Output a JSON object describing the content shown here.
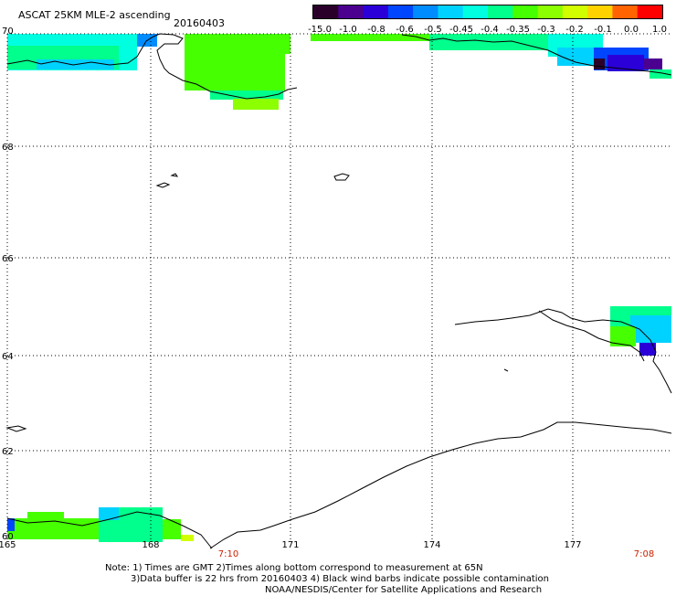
{
  "header": {
    "title": "ASCAT 25KM MLE-2 ascending",
    "date": "20160403"
  },
  "colorbar": {
    "labels": [
      "-15.0",
      "-1.0",
      "-0.8",
      "-0.6",
      "-0.5",
      "-0.45",
      "-0.4",
      "-0.35",
      "-0.3",
      "-0.2",
      "-0.1",
      "0.0",
      "1.0"
    ],
    "colors": [
      "#2a002a",
      "#4b0090",
      "#2b00d8",
      "#0046ff",
      "#008cff",
      "#00d2ff",
      "#00ffe0",
      "#00ff8c",
      "#46ff00",
      "#8cff00",
      "#d2ff00",
      "#ffd200",
      "#ff6400",
      "#ff0000"
    ]
  },
  "axes": {
    "lat_labels": [
      "70",
      "68",
      "66",
      "64",
      "62",
      "60"
    ],
    "lon_labels": [
      "165",
      "168",
      "171",
      "174",
      "177"
    ],
    "time_labels": [
      "7:10",
      "7:08"
    ]
  },
  "note": {
    "line1": "Note: 1) Times are GMT 2)Times along bottom correspond to measurement at 65N",
    "line2": "3)Data buffer is 22 hrs from 20160403 4) Black wind barbs indicate possible contamination",
    "line3": "NOAA/NESDIS/Center for Satellite Applications and Research"
  }
}
